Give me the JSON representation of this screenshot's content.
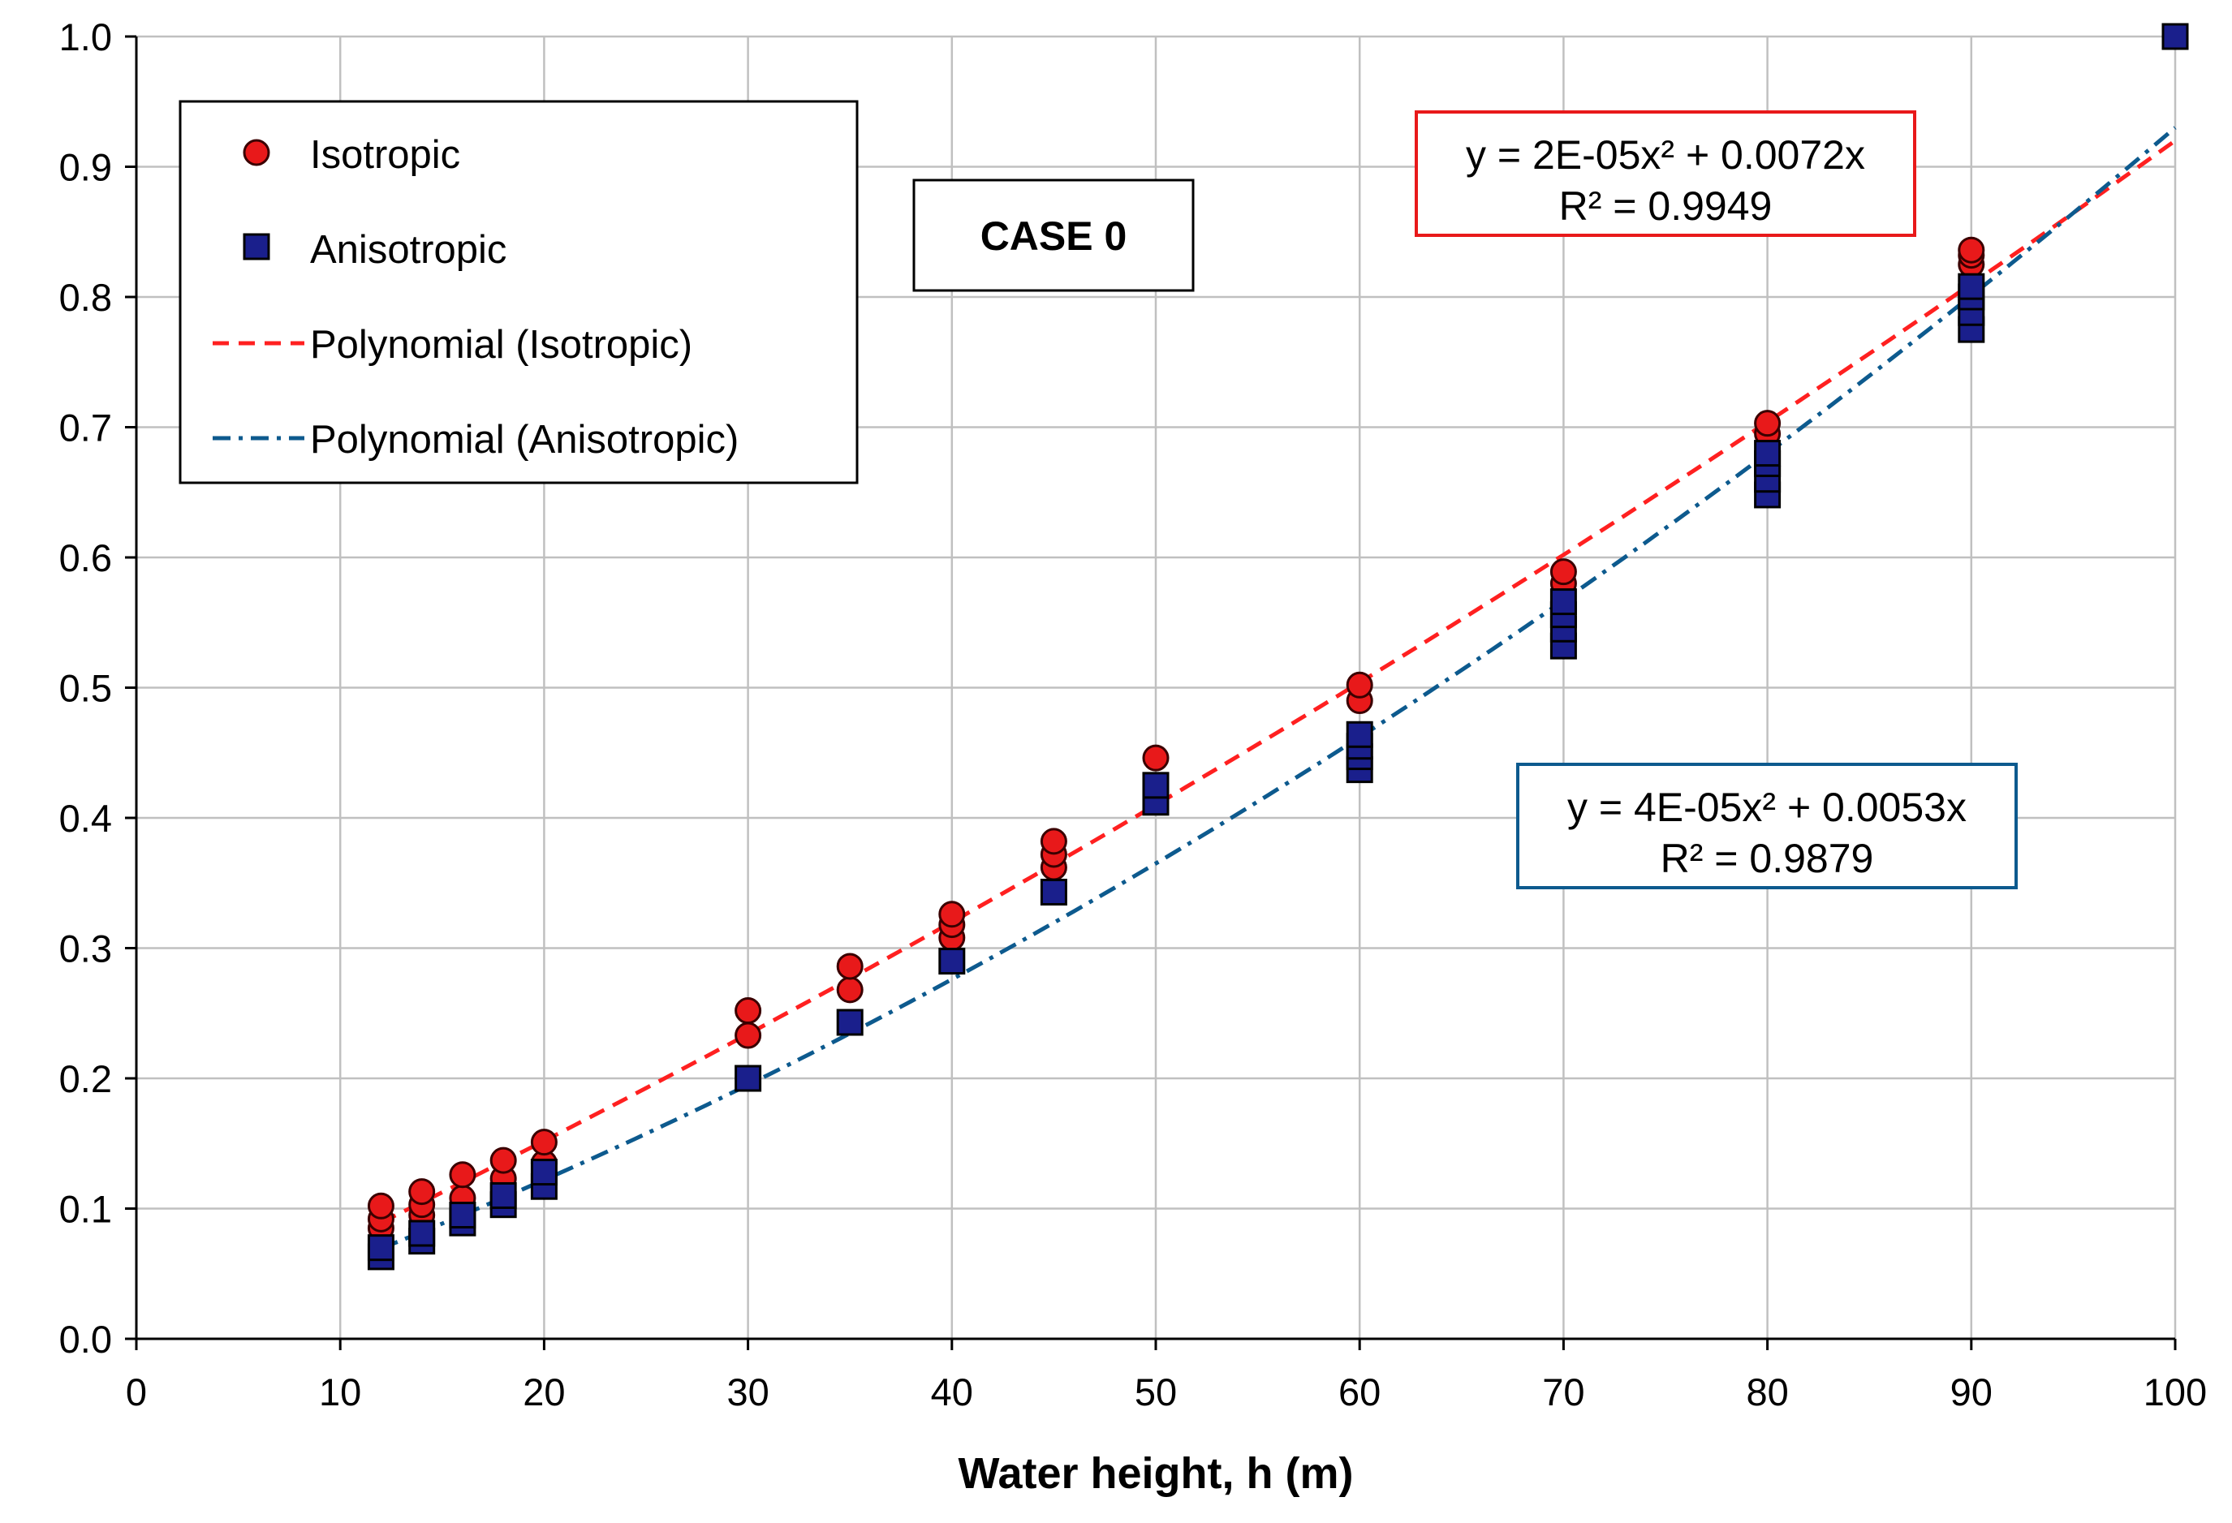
{
  "chart_data": {
    "type": "scatter",
    "title": "",
    "xlabel": "Water height, h (m)",
    "ylabel": "",
    "xlim": [
      0,
      100
    ],
    "ylim": [
      0.0,
      1.0
    ],
    "x_ticks": [
      "0",
      "10",
      "20",
      "30",
      "40",
      "50",
      "60",
      "70",
      "80",
      "90",
      "100"
    ],
    "y_ticks": [
      "0.0",
      "0.1",
      "0.2",
      "0.3",
      "0.4",
      "0.5",
      "0.6",
      "0.7",
      "0.8",
      "0.9",
      "1.0"
    ],
    "grid": true,
    "legend_position": "top-left",
    "case_label": "CASE 0",
    "series": [
      {
        "name": "Isotropic",
        "marker": "circle",
        "color": "#e8191a",
        "x": [
          12,
          12,
          12,
          14,
          14,
          14,
          16,
          16,
          18,
          18,
          20,
          20,
          30,
          30,
          35,
          35,
          40,
          40,
          40,
          45,
          45,
          45,
          50,
          50,
          60,
          60,
          70,
          70,
          80,
          80,
          90,
          90,
          90
        ],
        "y": [
          0.085,
          0.092,
          0.102,
          0.095,
          0.103,
          0.113,
          0.108,
          0.126,
          0.123,
          0.137,
          0.135,
          0.151,
          0.233,
          0.252,
          0.268,
          0.286,
          0.308,
          0.318,
          0.326,
          0.362,
          0.372,
          0.382,
          0.425,
          0.446,
          0.49,
          0.502,
          0.58,
          0.589,
          0.695,
          0.703,
          0.825,
          0.832,
          0.836
        ]
      },
      {
        "name": "Anisotropic",
        "marker": "square",
        "color": "#1a1f8c",
        "x": [
          12,
          12,
          14,
          14,
          16,
          16,
          18,
          18,
          20,
          20,
          30,
          35,
          40,
          45,
          50,
          50,
          60,
          60,
          60,
          60,
          70,
          70,
          70,
          70,
          80,
          80,
          80,
          80,
          90,
          90,
          90,
          90,
          100
        ],
        "y": [
          0.063,
          0.07,
          0.075,
          0.081,
          0.089,
          0.095,
          0.103,
          0.11,
          0.117,
          0.128,
          0.2,
          0.243,
          0.29,
          0.343,
          0.412,
          0.425,
          0.437,
          0.447,
          0.455,
          0.464,
          0.532,
          0.545,
          0.556,
          0.566,
          0.648,
          0.66,
          0.672,
          0.68,
          0.775,
          0.788,
          0.8,
          0.808,
          1.0
        ]
      }
    ],
    "trendlines": [
      {
        "name": "Polynomial (Isotropic)",
        "style": "dashed",
        "color": "#ff2020",
        "a": 2e-05,
        "b": 0.0072,
        "x_range": [
          12,
          100
        ],
        "equation": "y = 2E-05x² + 0.0072x",
        "r2": "R² = 0.9949"
      },
      {
        "name": "Polynomial (Anisotropic)",
        "style": "dash-dot",
        "color": "#0d5a8e",
        "a": 4e-05,
        "b": 0.0053,
        "x_range": [
          12,
          100
        ],
        "equation": "y = 4E-05x² + 0.0053x",
        "r2": "R² = 0.9879"
      }
    ]
  }
}
